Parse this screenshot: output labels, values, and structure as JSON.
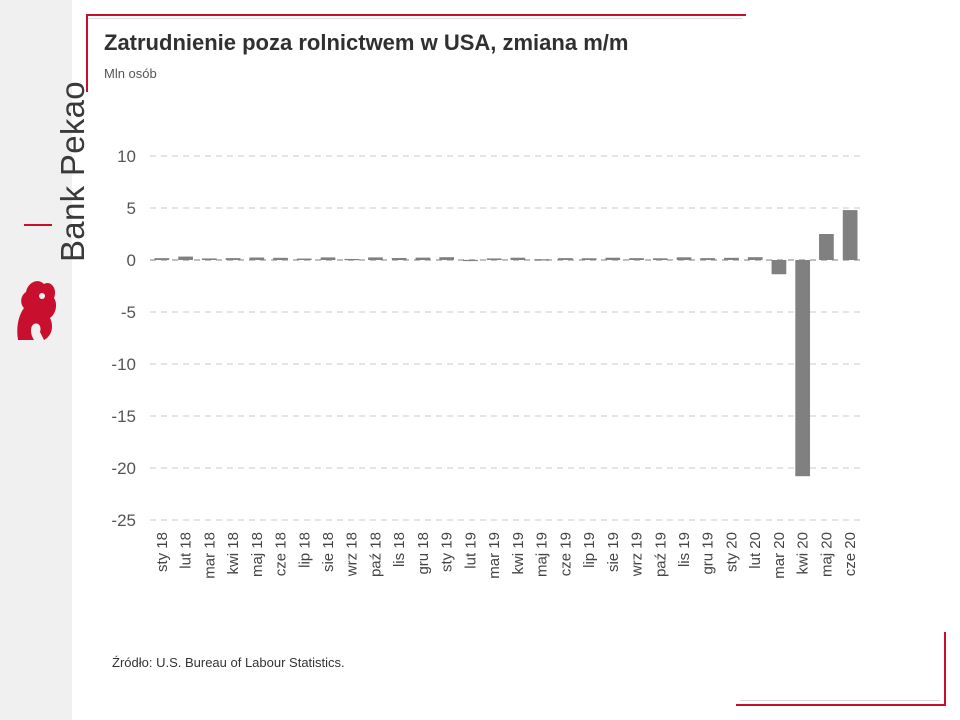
{
  "brand": {
    "name": "Bank Pekao",
    "accent_color": "#c8102e",
    "logo_icon": "pekao-bison-icon"
  },
  "title": "Zatrudnienie poza rolnictwem w USA, zmiana m/m",
  "subtitle": "Mln osób",
  "source": "Źródło: U.S. Bureau of Labour Statistics.",
  "chart_data": {
    "type": "bar",
    "title": "Zatrudnienie poza rolnictwem w USA, zmiana m/m",
    "ylabel": "Mln osób",
    "xlabel": "",
    "ylim": [
      -25,
      10
    ],
    "yticks": [
      10,
      5,
      0,
      -5,
      -10,
      -15,
      -20,
      -25
    ],
    "ytick_labels": [
      "10",
      "5",
      "0",
      "-5",
      "-10",
      "-15",
      "-20",
      "-25"
    ],
    "grid": true,
    "bar_color": "#808080",
    "categories": [
      "sty 18",
      "lut 18",
      "mar 18",
      "kwi 18",
      "maj 18",
      "cze 18",
      "lip 18",
      "sie 18",
      "wrz 18",
      "paź 18",
      "lis 18",
      "gru 18",
      "sty 19",
      "lut 19",
      "mar 19",
      "kwi 19",
      "maj 19",
      "cze 19",
      "lip 19",
      "sie 19",
      "wrz 19",
      "paź 19",
      "lis 19",
      "gru 19",
      "sty 20",
      "lut 20",
      "mar 20",
      "kwi 20",
      "maj 20",
      "cze 20"
    ],
    "values": [
      0.18,
      0.33,
      0.15,
      0.18,
      0.24,
      0.21,
      0.14,
      0.25,
      0.1,
      0.25,
      0.19,
      0.23,
      0.27,
      0.01,
      0.15,
      0.22,
      0.07,
      0.18,
      0.17,
      0.22,
      0.18,
      0.16,
      0.26,
      0.18,
      0.21,
      0.27,
      -1.37,
      -20.79,
      2.5,
      4.8
    ]
  }
}
